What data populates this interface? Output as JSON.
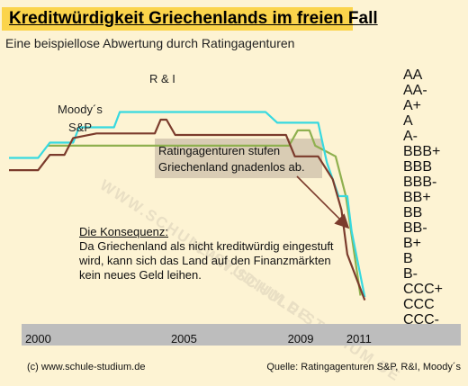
{
  "chart_data": {
    "type": "line",
    "title": "Kreditwürdigkeit Griechenlands im freien Fall",
    "subtitle": "Eine beispiellose Abwertung durch Ratingagenturen",
    "xlabel": "",
    "ylabel": "",
    "x_ticks": [
      "2000",
      "2005",
      "2009",
      "2011"
    ],
    "xlim": [
      1999.0,
      2011.9
    ],
    "y_ratings": [
      "AA",
      "AA-",
      "A+",
      "A",
      "A-",
      "BBB+",
      "BBB",
      "BBB-",
      "BB+",
      "BB",
      "BB-",
      "B+",
      "B",
      "B-",
      "CCC+",
      "CCC",
      "CCC-"
    ],
    "series": [
      {
        "name": "R & I",
        "color": "#8fb04f",
        "points": [
          [
            2000.3,
            4.7
          ],
          [
            2008.6,
            4.7
          ],
          [
            2008.9,
            3.7
          ],
          [
            2009.3,
            3.7
          ],
          [
            2009.5,
            4.7
          ],
          [
            2010.2,
            5.4
          ],
          [
            2010.55,
            8.0
          ],
          [
            2011.05,
            14.5
          ]
        ]
      },
      {
        "name": "Moody´s",
        "color": "#37d9e0",
        "points": [
          [
            1999.0,
            5.5
          ],
          [
            2000.0,
            5.5
          ],
          [
            2000.4,
            4.5
          ],
          [
            2001.2,
            4.5
          ],
          [
            2001.4,
            3.5
          ],
          [
            2002.6,
            3.5
          ],
          [
            2002.8,
            2.5
          ],
          [
            2007.8,
            2.5
          ],
          [
            2008.2,
            3.2
          ],
          [
            2009.6,
            3.2
          ],
          [
            2009.9,
            5.8
          ],
          [
            2010.3,
            8.0
          ],
          [
            2010.6,
            8.0
          ],
          [
            2010.75,
            10.3
          ],
          [
            2011.2,
            14.6
          ]
        ]
      },
      {
        "name": "S&P",
        "color": "#7b3b2c",
        "points": [
          [
            1999.0,
            6.3
          ],
          [
            2000.0,
            6.3
          ],
          [
            2000.4,
            5.3
          ],
          [
            2000.9,
            5.3
          ],
          [
            2001.2,
            4.2
          ],
          [
            2002.0,
            3.9
          ],
          [
            2004.0,
            3.9
          ],
          [
            2004.2,
            3.0
          ],
          [
            2004.4,
            3.0
          ],
          [
            2004.7,
            4.0
          ],
          [
            2008.5,
            4.0
          ],
          [
            2008.8,
            5.4
          ],
          [
            2009.6,
            5.4
          ],
          [
            2010.1,
            6.9
          ],
          [
            2010.4,
            8.9
          ],
          [
            2010.6,
            11.8
          ],
          [
            2011.2,
            14.8
          ]
        ]
      }
    ],
    "annotations": {
      "callout": [
        "Ratingagenturen stufen",
        "Griechenland gnadenlos ab."
      ],
      "consequence_heading": "Die Konsequenz:",
      "consequence_lines": [
        "Da Griechenland als nicht kreditwürdig eingestuft",
        "wird, kann sich das Land auf den Finanzmärkten",
        "kein neues Geld leihen."
      ]
    },
    "colors": {
      "title_bg": "#fbd44b",
      "page_bg": "#fdf3d3",
      "axis_band": "#bdbdbd",
      "callout_bg": "#d9ccb4",
      "arrow": "#7b3b2c"
    }
  },
  "footer": {
    "left": "(c) www.schule-studium.de",
    "right": "Quelle: Ratingagenturen S&P, R&I, Moody´s"
  },
  "watermark": "WWW.SCHULE-STUDIUM.DE"
}
